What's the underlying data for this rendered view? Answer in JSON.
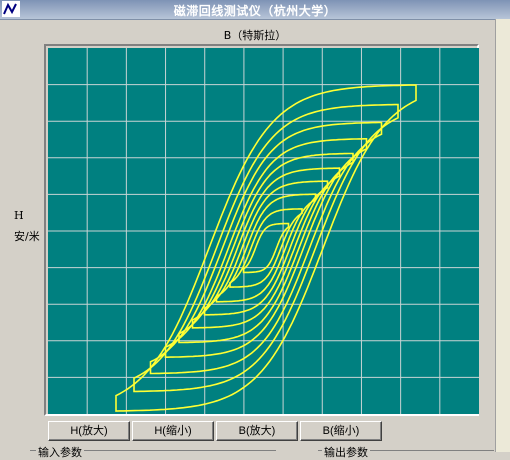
{
  "window": {
    "title": "磁滞回线测试仪（杭州大学）"
  },
  "plot": {
    "top_label": "B（特斯拉）",
    "left_label_h": "H",
    "left_label_unit": "安/米",
    "background_color": "#008080",
    "grid_color": "#c8d4d4",
    "curve_color": "#ffff33",
    "grid_cols": 11,
    "grid_rows": 10
  },
  "buttons": {
    "h_zoom_in": "H(放大)",
    "h_zoom_out": "H(缩小)",
    "b_zoom_in": "B(放大)",
    "b_zoom_out": "B(缩小)"
  },
  "groups": {
    "input_params": "输入参数",
    "output_params": "输出参数"
  },
  "chart_data": {
    "type": "line",
    "title": "",
    "xlabel": "H 安/米",
    "ylabel": "B（特斯拉）",
    "description": "nested hysteresis loops",
    "loops": [
      {
        "amplitude": 1.0,
        "coercive": 0.38
      },
      {
        "amplitude": 0.88,
        "coercive": 0.33
      },
      {
        "amplitude": 0.77,
        "coercive": 0.29
      },
      {
        "amplitude": 0.67,
        "coercive": 0.25
      },
      {
        "amplitude": 0.58,
        "coercive": 0.22
      },
      {
        "amplitude": 0.49,
        "coercive": 0.19
      },
      {
        "amplitude": 0.41,
        "coercive": 0.16
      },
      {
        "amplitude": 0.33,
        "coercive": 0.13
      },
      {
        "amplitude": 0.24,
        "coercive": 0.1
      },
      {
        "amplitude": 0.15,
        "coercive": 0.07
      }
    ]
  }
}
